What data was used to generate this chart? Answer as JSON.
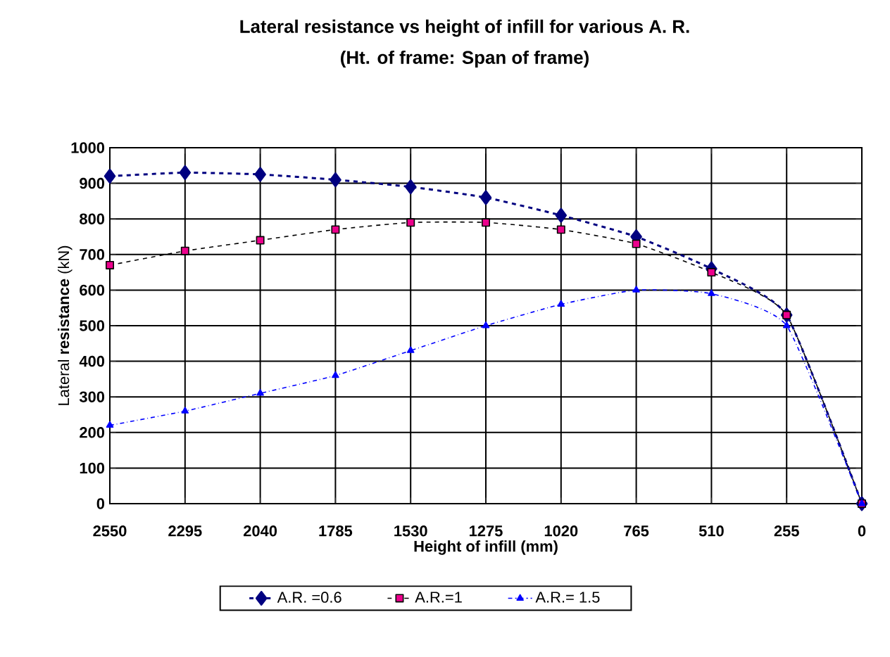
{
  "chart_data": {
    "type": "line",
    "title": "Lateral resistance vs height of infill for various A. R.",
    "subtitle": "(Ht. of frame: Span of frame)",
    "xlabel": "Height of infill (mm)",
    "ylabel": "Lateral **resistance** (kN)",
    "categories": [
      "2550",
      "2295",
      "2040",
      "1785",
      "1530",
      "1275",
      "1020",
      "765",
      "510",
      "255",
      "0"
    ],
    "ylim": [
      0,
      1000
    ],
    "yticks": [
      0,
      100,
      200,
      300,
      400,
      500,
      600,
      700,
      800,
      900,
      1000
    ],
    "grid": true,
    "legend": "bottom",
    "series": [
      {
        "name": "A.R. =0.6",
        "color": "#000080",
        "marker": "diamond",
        "line_style": "dashed",
        "values": [
          920,
          930,
          925,
          910,
          890,
          860,
          810,
          750,
          660,
          530,
          0
        ]
      },
      {
        "name": "A.R.=1",
        "color": "#000000",
        "marker": "square",
        "line_style": "dashed",
        "values": [
          670,
          710,
          740,
          770,
          790,
          790,
          770,
          730,
          650,
          530,
          0
        ]
      },
      {
        "name": "A.R.= 1.5",
        "color": "#0000ff",
        "marker": "triangle",
        "line_style": "dotted",
        "values": [
          220,
          260,
          310,
          360,
          430,
          500,
          560,
          600,
          590,
          500,
          0
        ]
      }
    ]
  }
}
